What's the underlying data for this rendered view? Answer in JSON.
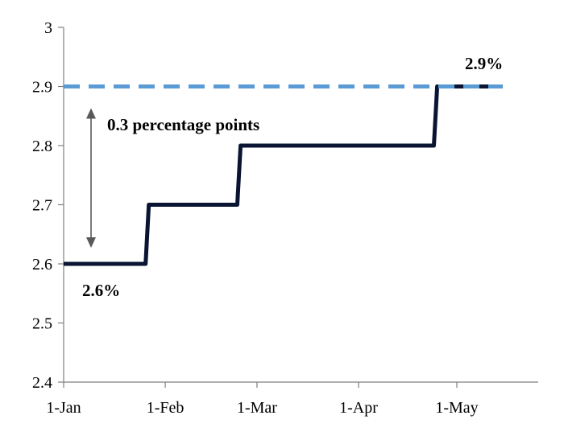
{
  "chart_data": {
    "type": "line",
    "title": "",
    "xlabel": "",
    "ylabel": "",
    "ylim": [
      2.4,
      3.0
    ],
    "yticks": [
      "2.4",
      "2.5",
      "2.6",
      "2.7",
      "2.8",
      "2.9",
      "3"
    ],
    "xticks": [
      "1-Jan",
      "1-Feb",
      "1-Mar",
      "1-Apr",
      "1-May"
    ],
    "grid": false,
    "series": [
      {
        "style": "step",
        "color": "#0a1433",
        "points": [
          {
            "x": "1-Jan",
            "y": 2.6
          },
          {
            "x": "26-Jan",
            "y": 2.6
          },
          {
            "x": "27-Jan",
            "y": 2.7
          },
          {
            "x": "23-Feb",
            "y": 2.7
          },
          {
            "x": "24-Feb",
            "y": 2.8
          },
          {
            "x": "24-Apr",
            "y": 2.8
          },
          {
            "x": "25-Apr",
            "y": 2.9
          },
          {
            "x": "15-May",
            "y": 2.9
          }
        ]
      },
      {
        "style": "dashed",
        "color": "#5b9bd5",
        "points": [
          {
            "x": "1-Jan",
            "y": 2.9
          },
          {
            "x": "15-May",
            "y": 2.9
          }
        ]
      }
    ],
    "annotations": {
      "gap_label": "0.3 percentage points",
      "start_label": "2.6%",
      "end_label": "2.9%"
    }
  }
}
